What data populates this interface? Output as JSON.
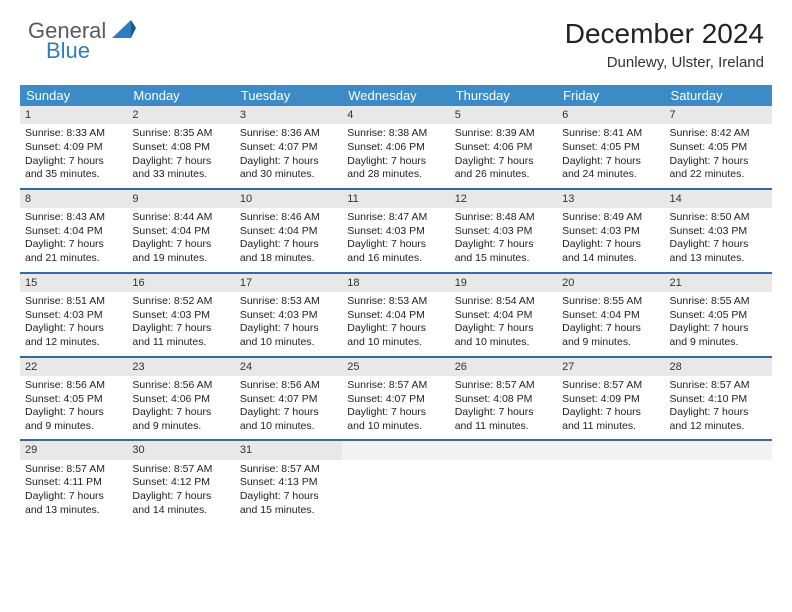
{
  "brand": {
    "text1": "General",
    "text2": "Blue"
  },
  "title": "December 2024",
  "location": "Dunlewy, Ulster, Ireland",
  "colors": {
    "header_bg": "#3b8bc9",
    "week_divider": "#2d6ea8",
    "daynum_bg": "#e8e8e8",
    "logo_blue": "#2d7dc0",
    "logo_gray": "#5a5a5a"
  },
  "dayHeaders": [
    "Sunday",
    "Monday",
    "Tuesday",
    "Wednesday",
    "Thursday",
    "Friday",
    "Saturday"
  ],
  "weeks": [
    [
      {
        "n": "1",
        "sr": "8:33 AM",
        "ss": "4:09 PM",
        "dl": "7 hours and 35 minutes."
      },
      {
        "n": "2",
        "sr": "8:35 AM",
        "ss": "4:08 PM",
        "dl": "7 hours and 33 minutes."
      },
      {
        "n": "3",
        "sr": "8:36 AM",
        "ss": "4:07 PM",
        "dl": "7 hours and 30 minutes."
      },
      {
        "n": "4",
        "sr": "8:38 AM",
        "ss": "4:06 PM",
        "dl": "7 hours and 28 minutes."
      },
      {
        "n": "5",
        "sr": "8:39 AM",
        "ss": "4:06 PM",
        "dl": "7 hours and 26 minutes."
      },
      {
        "n": "6",
        "sr": "8:41 AM",
        "ss": "4:05 PM",
        "dl": "7 hours and 24 minutes."
      },
      {
        "n": "7",
        "sr": "8:42 AM",
        "ss": "4:05 PM",
        "dl": "7 hours and 22 minutes."
      }
    ],
    [
      {
        "n": "8",
        "sr": "8:43 AM",
        "ss": "4:04 PM",
        "dl": "7 hours and 21 minutes."
      },
      {
        "n": "9",
        "sr": "8:44 AM",
        "ss": "4:04 PM",
        "dl": "7 hours and 19 minutes."
      },
      {
        "n": "10",
        "sr": "8:46 AM",
        "ss": "4:04 PM",
        "dl": "7 hours and 18 minutes."
      },
      {
        "n": "11",
        "sr": "8:47 AM",
        "ss": "4:03 PM",
        "dl": "7 hours and 16 minutes."
      },
      {
        "n": "12",
        "sr": "8:48 AM",
        "ss": "4:03 PM",
        "dl": "7 hours and 15 minutes."
      },
      {
        "n": "13",
        "sr": "8:49 AM",
        "ss": "4:03 PM",
        "dl": "7 hours and 14 minutes."
      },
      {
        "n": "14",
        "sr": "8:50 AM",
        "ss": "4:03 PM",
        "dl": "7 hours and 13 minutes."
      }
    ],
    [
      {
        "n": "15",
        "sr": "8:51 AM",
        "ss": "4:03 PM",
        "dl": "7 hours and 12 minutes."
      },
      {
        "n": "16",
        "sr": "8:52 AM",
        "ss": "4:03 PM",
        "dl": "7 hours and 11 minutes."
      },
      {
        "n": "17",
        "sr": "8:53 AM",
        "ss": "4:03 PM",
        "dl": "7 hours and 10 minutes."
      },
      {
        "n": "18",
        "sr": "8:53 AM",
        "ss": "4:04 PM",
        "dl": "7 hours and 10 minutes."
      },
      {
        "n": "19",
        "sr": "8:54 AM",
        "ss": "4:04 PM",
        "dl": "7 hours and 10 minutes."
      },
      {
        "n": "20",
        "sr": "8:55 AM",
        "ss": "4:04 PM",
        "dl": "7 hours and 9 minutes."
      },
      {
        "n": "21",
        "sr": "8:55 AM",
        "ss": "4:05 PM",
        "dl": "7 hours and 9 minutes."
      }
    ],
    [
      {
        "n": "22",
        "sr": "8:56 AM",
        "ss": "4:05 PM",
        "dl": "7 hours and 9 minutes."
      },
      {
        "n": "23",
        "sr": "8:56 AM",
        "ss": "4:06 PM",
        "dl": "7 hours and 9 minutes."
      },
      {
        "n": "24",
        "sr": "8:56 AM",
        "ss": "4:07 PM",
        "dl": "7 hours and 10 minutes."
      },
      {
        "n": "25",
        "sr": "8:57 AM",
        "ss": "4:07 PM",
        "dl": "7 hours and 10 minutes."
      },
      {
        "n": "26",
        "sr": "8:57 AM",
        "ss": "4:08 PM",
        "dl": "7 hours and 11 minutes."
      },
      {
        "n": "27",
        "sr": "8:57 AM",
        "ss": "4:09 PM",
        "dl": "7 hours and 11 minutes."
      },
      {
        "n": "28",
        "sr": "8:57 AM",
        "ss": "4:10 PM",
        "dl": "7 hours and 12 minutes."
      }
    ],
    [
      {
        "n": "29",
        "sr": "8:57 AM",
        "ss": "4:11 PM",
        "dl": "7 hours and 13 minutes."
      },
      {
        "n": "30",
        "sr": "8:57 AM",
        "ss": "4:12 PM",
        "dl": "7 hours and 14 minutes."
      },
      {
        "n": "31",
        "sr": "8:57 AM",
        "ss": "4:13 PM",
        "dl": "7 hours and 15 minutes."
      },
      null,
      null,
      null,
      null
    ]
  ],
  "labels": {
    "sunrise": "Sunrise:",
    "sunset": "Sunset:",
    "daylight": "Daylight:"
  }
}
